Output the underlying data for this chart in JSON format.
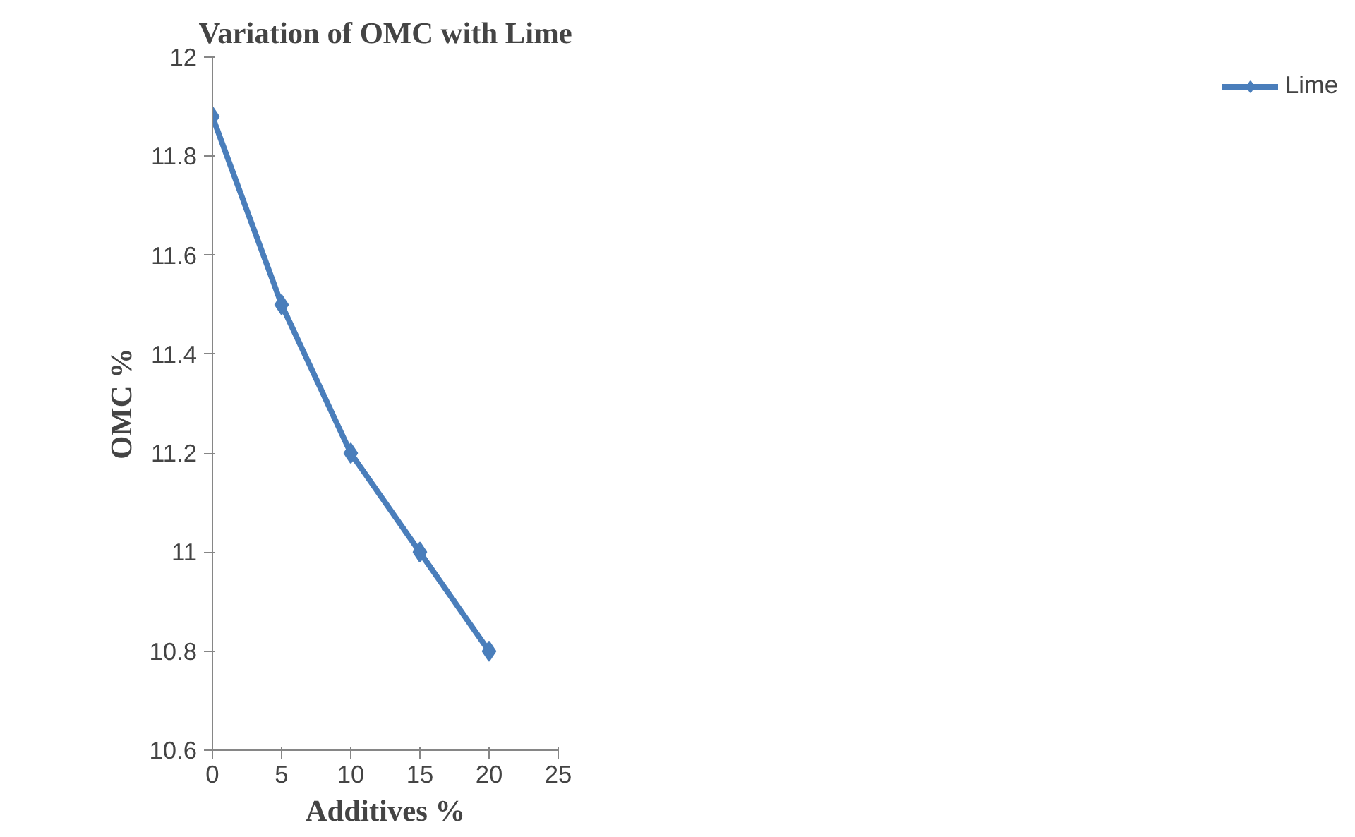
{
  "chart_data": {
    "type": "line",
    "title": "Variation of OMC with Lime",
    "xlabel": "Additives %",
    "ylabel": "OMC %",
    "x": [
      0,
      5,
      10,
      15,
      20
    ],
    "series": [
      {
        "name": "Lime",
        "color": "#4a7ebb",
        "values": [
          11.88,
          11.5,
          11.2,
          11.0,
          10.8
        ]
      }
    ],
    "xlim": [
      0,
      25
    ],
    "xticks": [
      0,
      5,
      10,
      15,
      20,
      25
    ],
    "ylim": [
      10.6,
      12
    ],
    "yticks": [
      {
        "value": 10.6,
        "label": "10.6"
      },
      {
        "value": 10.8,
        "label": "10.8"
      },
      11,
      {
        "value": 11.2,
        "label": "11.2"
      },
      {
        "value": 11.4,
        "label": "11.4"
      },
      {
        "value": 11.6,
        "label": "11.6"
      },
      {
        "value": 11.8,
        "label": "11.8"
      },
      12
    ],
    "grid": false,
    "legend": "right",
    "marker": "diamond",
    "line_style": "solid"
  }
}
